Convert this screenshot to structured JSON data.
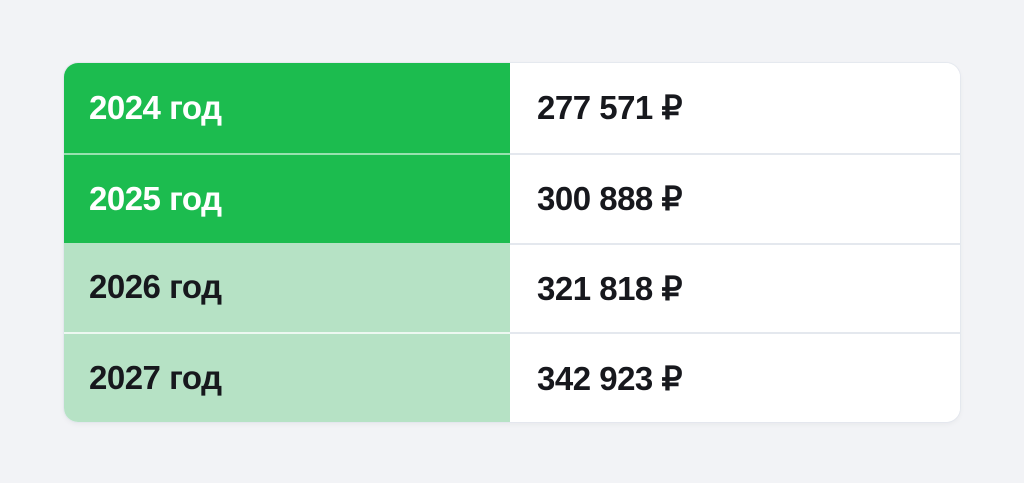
{
  "page": {
    "background": "#F2F3F6"
  },
  "chart_data": {
    "type": "table",
    "categories": [
      "2024 год",
      "2025 год",
      "2026 год",
      "2027 год"
    ],
    "values": [
      277571,
      300888,
      321818,
      342923
    ],
    "values_formatted": [
      "277 571 ₽",
      "300 888 ₽",
      "321 818 ₽",
      "342 923 ₽"
    ],
    "currency_symbol": "₽",
    "legend_position": "none",
    "grid": false
  },
  "table": {
    "colors": {
      "primary_green": "#1CBC4F",
      "light_green": "#B6E2C5",
      "value_bg": "#FFFFFF",
      "label_on_green": "#FFFFFF",
      "label_on_light": "#17181D",
      "value_text": "#17181D",
      "divider_right": "#E4E8EE",
      "divider_green": "rgba(255,255,255,0.55)",
      "divider_light": "rgba(255,255,255,0.75)",
      "page_bg": "#F2F3F6"
    },
    "rows": [
      {
        "year_label": "2024 год",
        "value": "277 571 ₽",
        "highlight": true
      },
      {
        "year_label": "2025 год",
        "value": "300 888 ₽",
        "highlight": true
      },
      {
        "year_label": "2026 год",
        "value": "321 818 ₽",
        "highlight": false
      },
      {
        "year_label": "2027 год",
        "value": "342 923 ₽",
        "highlight": false
      }
    ]
  }
}
